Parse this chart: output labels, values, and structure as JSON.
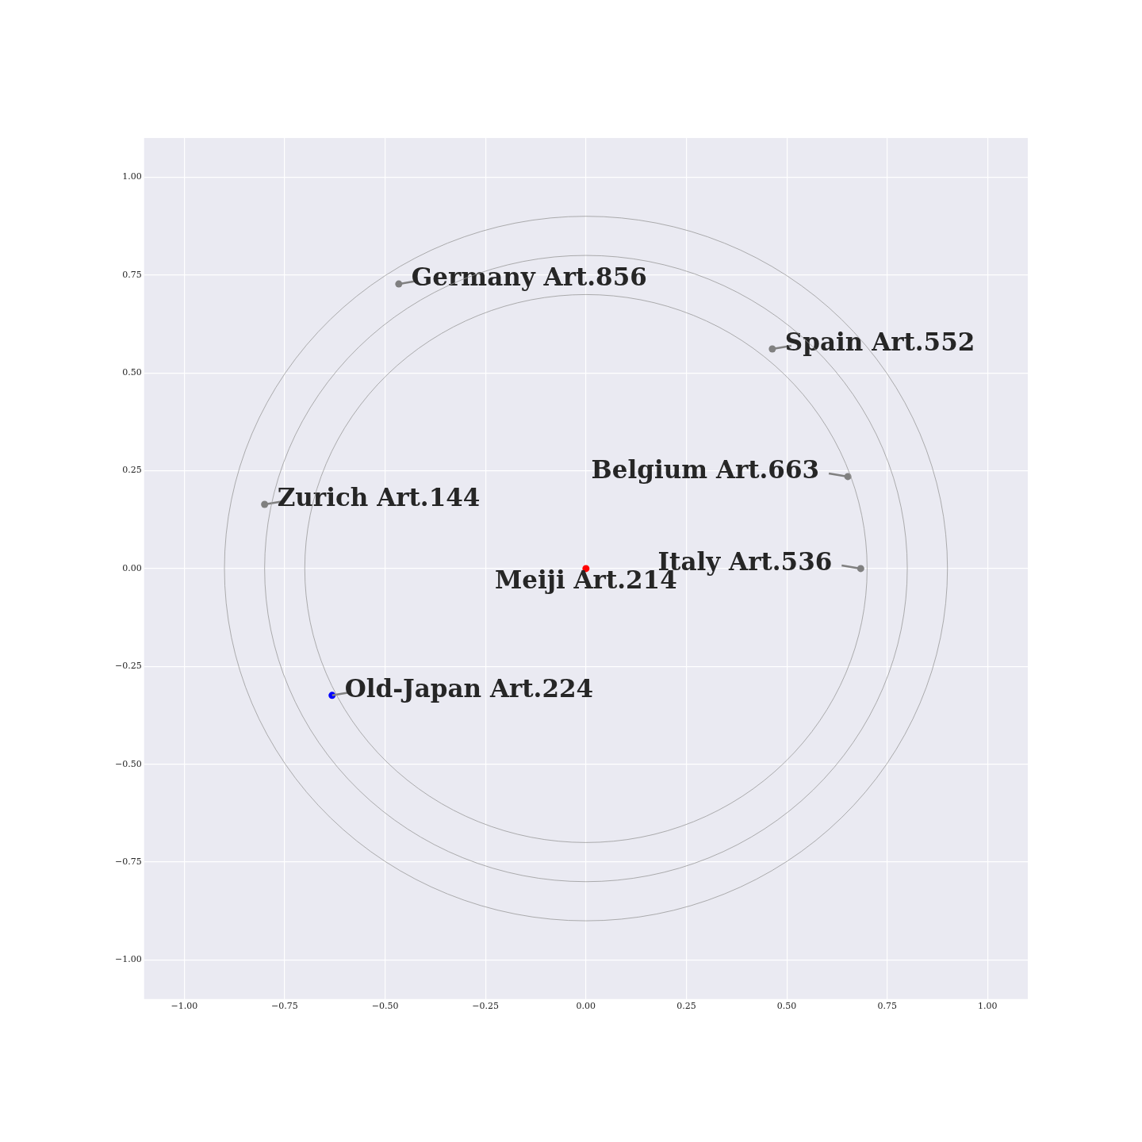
{
  "chart_data": {
    "type": "scatter",
    "xlim": [
      -1.1,
      1.1
    ],
    "ylim": [
      -1.1,
      1.1
    ],
    "xticks": [
      {
        "value": -1,
        "label": "−1.00"
      },
      {
        "value": -0.75,
        "label": "−0.75"
      },
      {
        "value": -0.5,
        "label": "−0.50"
      },
      {
        "value": -0.25,
        "label": "−0.25"
      },
      {
        "value": 0,
        "label": "0.00"
      },
      {
        "value": 0.25,
        "label": "0.25"
      },
      {
        "value": 0.5,
        "label": "0.50"
      },
      {
        "value": 0.75,
        "label": "0.75"
      },
      {
        "value": 1,
        "label": "1.00"
      }
    ],
    "yticks": [
      {
        "value": -1,
        "label": "−1.00"
      },
      {
        "value": -0.75,
        "label": "−0.75"
      },
      {
        "value": -0.5,
        "label": "−0.50"
      },
      {
        "value": -0.25,
        "label": "−0.25"
      },
      {
        "value": 0,
        "label": "0.00"
      },
      {
        "value": 0.25,
        "label": "0.25"
      },
      {
        "value": 0.5,
        "label": "0.50"
      },
      {
        "value": 0.75,
        "label": "0.75"
      },
      {
        "value": 1,
        "label": "1.00"
      }
    ],
    "grid": true,
    "legend": false,
    "series": [
      {
        "type": "scatter",
        "marker": "circle",
        "colors": [
          "#808080",
          "#808080",
          "#808080",
          "#808080",
          "#808080",
          "#0000ff",
          "#ff0000"
        ],
        "x": [
          -0.466,
          0.464,
          0.652,
          0.684,
          -0.8,
          -0.632,
          0
        ],
        "values": [
          0.727,
          0.561,
          0.235,
          0,
          0.164,
          -0.324,
          0
        ]
      }
    ],
    "annotations": [
      {
        "text": "Germany Art.856",
        "x": -0.466,
        "y": 0.727
      },
      {
        "text": "Spain Art.552",
        "x": 0.464,
        "y": 0.561
      },
      {
        "text": "Belgium Art.663",
        "x": 0.652,
        "y": 0.235
      },
      {
        "text": "Italy Art.536",
        "x": 0.684,
        "y": 0
      },
      {
        "text": "Zurich Art.144",
        "x": -0.8,
        "y": 0.164
      },
      {
        "text": "Old-Japan Art.224",
        "x": -0.632,
        "y": -0.324
      },
      {
        "text": "Meiji Art.214",
        "x": 0,
        "y": 0
      }
    ]
  }
}
